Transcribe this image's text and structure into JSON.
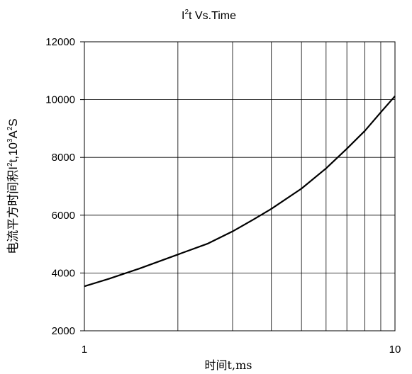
{
  "chart_data": {
    "type": "line",
    "title_main": "I",
    "title_sup": "2",
    "title_rest": "t  Vs.Time",
    "xlabel": "时间t,ms",
    "ylabel_cjk": "电流平方时间积",
    "ylabel_i2": "I",
    "ylabel_sup1": "2",
    "ylabel_mid": "t,10",
    "ylabel_sup2": "3",
    "ylabel_unit_a": "A",
    "ylabel_sup3": "2",
    "ylabel_unit_s": "S",
    "x_scale": "log",
    "xlim": [
      1,
      10
    ],
    "ylim": [
      2000,
      12000
    ],
    "x_ticks": [
      1,
      10
    ],
    "x_tick_labels": [
      "1",
      "10"
    ],
    "y_ticks": [
      2000,
      4000,
      6000,
      8000,
      10000,
      12000
    ],
    "y_tick_labels": [
      "2000",
      "4000",
      "6000",
      "8000",
      "10000",
      "12000"
    ],
    "grid": true,
    "series": [
      {
        "x": [
          1,
          1.2,
          1.5,
          2,
          2.5,
          3,
          3.5,
          4,
          5,
          6,
          7,
          8,
          9,
          10
        ],
        "y": [
          3540,
          3800,
          4150,
          4640,
          5020,
          5440,
          5850,
          6220,
          6920,
          7620,
          8300,
          8920,
          9560,
          10120
        ]
      }
    ]
  },
  "colors": {
    "line": "#000000",
    "grid": "#000000",
    "text": "#000000",
    "background": "#ffffff"
  }
}
